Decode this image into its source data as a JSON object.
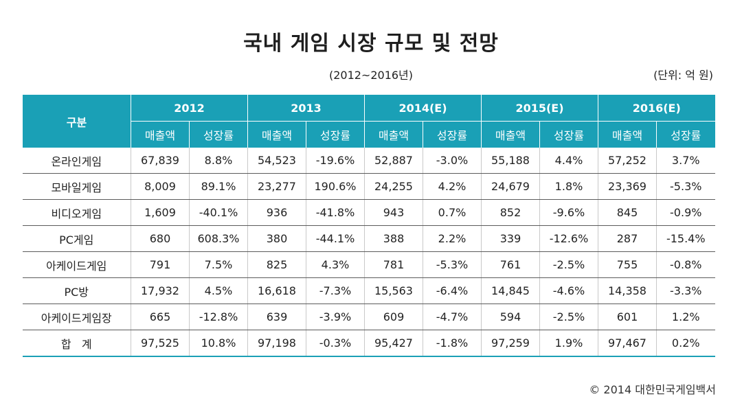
{
  "title": "국내 게임 시장 규모 및 전망",
  "period": "(2012~2016년)",
  "unit": "(단위: 억 원)",
  "table": {
    "label_header": "구분",
    "years": [
      "2012",
      "2013",
      "2014(E)",
      "2015(E)",
      "2016(E)"
    ],
    "sub_headers": [
      "매출액",
      "성장률"
    ],
    "rows": [
      {
        "label": "온라인게임",
        "cells": [
          "67,839",
          "8.8%",
          "54,523",
          "-19.6%",
          "52,887",
          "-3.0%",
          "55,188",
          "4.4%",
          "57,252",
          "3.7%"
        ]
      },
      {
        "label": "모바일게임",
        "cells": [
          "8,009",
          "89.1%",
          "23,277",
          "190.6%",
          "24,255",
          "4.2%",
          "24,679",
          "1.8%",
          "23,369",
          "-5.3%"
        ]
      },
      {
        "label": "비디오게임",
        "cells": [
          "1,609",
          "-40.1%",
          "936",
          "-41.8%",
          "943",
          "0.7%",
          "852",
          "-9.6%",
          "845",
          "-0.9%"
        ]
      },
      {
        "label": "PC게임",
        "cells": [
          "680",
          "608.3%",
          "380",
          "-44.1%",
          "388",
          "2.2%",
          "339",
          "-12.6%",
          "287",
          "-15.4%"
        ]
      },
      {
        "label": "아케이드게임",
        "cells": [
          "791",
          "7.5%",
          "825",
          "4.3%",
          "781",
          "-5.3%",
          "761",
          "-2.5%",
          "755",
          "-0.8%"
        ]
      },
      {
        "label": "PC방",
        "cells": [
          "17,932",
          "4.5%",
          "16,618",
          "-7.3%",
          "15,563",
          "-6.4%",
          "14,845",
          "-4.6%",
          "14,358",
          "-3.3%"
        ]
      },
      {
        "label": "아케이드게임장",
        "cells": [
          "665",
          "-12.8%",
          "639",
          "-3.9%",
          "609",
          "-4.7%",
          "594",
          "-2.5%",
          "601",
          "1.2%"
        ]
      },
      {
        "label": "합   계",
        "cells": [
          "97,525",
          "10.8%",
          "97,198",
          "-0.3%",
          "95,427",
          "-1.8%",
          "97,259",
          "1.9%",
          "97,467",
          "0.2%"
        ]
      }
    ]
  },
  "source": "© 2014 대한민국게임백서"
}
